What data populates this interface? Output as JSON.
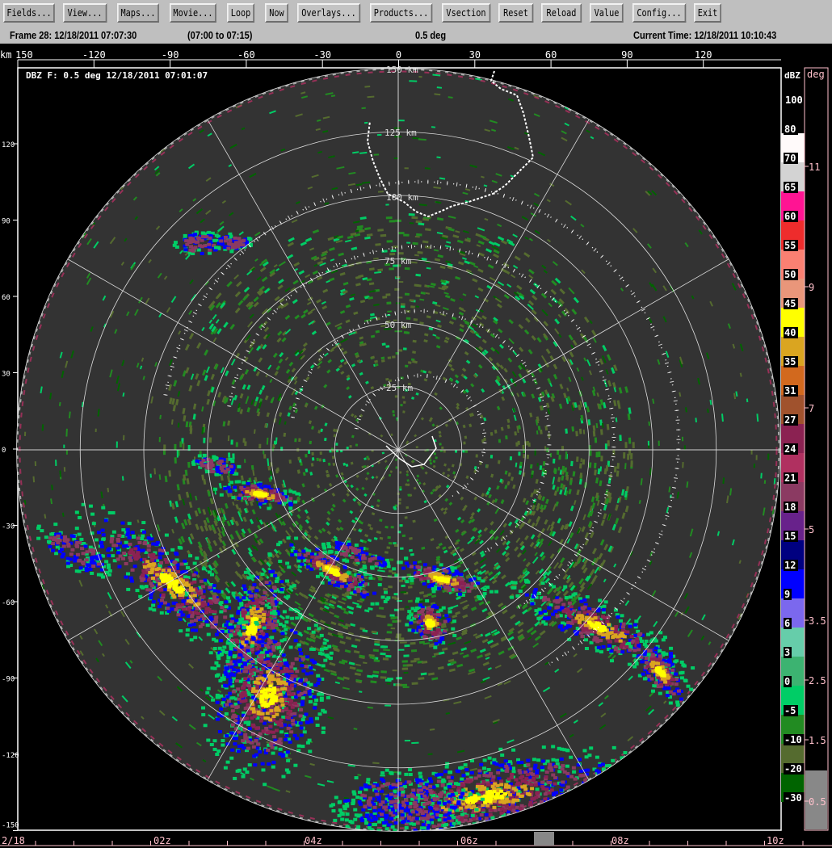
{
  "toolbar": {
    "buttons": [
      "Fields...",
      "View...",
      "Maps...",
      "Movie...",
      "Loop",
      "Now",
      "Overlays...",
      "Products...",
      "Vsection",
      "Reset",
      "Reload",
      "Value",
      "Config...",
      "Exit"
    ]
  },
  "status": {
    "frame": "Frame 28: 12/18/2011 07:07:30",
    "range": "(07:00 to 07:15)",
    "elevation": "0.5 deg",
    "current_time": "Current Time: 12/18/2011 10:10:43"
  },
  "plot": {
    "title": "DBZ F: 0.5 deg 12/18/2011 07:01:07",
    "x_unit": "km",
    "x_ticks": [
      "150",
      "-120",
      "-90",
      "-60",
      "-30",
      "0",
      "30",
      "60",
      "90",
      "120"
    ],
    "y_ticks": [
      "120",
      "90",
      "60",
      "30",
      "0",
      "-30",
      "-60",
      "-90",
      "-120",
      "-150"
    ],
    "ring_labels": [
      "25 km",
      "50 km",
      "75 km",
      "100 km",
      "125 km",
      "150 km"
    ]
  },
  "colorbar": {
    "unit": "dBZ",
    "top_label": "100",
    "labels": [
      "80",
      "70",
      "65",
      "60",
      "55",
      "50",
      "45",
      "40",
      "35",
      "31",
      "27",
      "24",
      "21",
      "18",
      "15",
      "12",
      "9",
      "6",
      "3",
      "0",
      "-5",
      "-10",
      "-20",
      "-30"
    ],
    "colors": [
      "#fffafa",
      "#d3d3d3",
      "#ff1493",
      "#ee2c2c",
      "#fa8072",
      "#e9967a",
      "#ffff00",
      "#daa520",
      "#d2691e",
      "#a0522d",
      "#8b2252",
      "#b03060",
      "#8b3a62",
      "#68228b",
      "#000080",
      "#0000ff",
      "#7b68ee",
      "#66cdaa",
      "#3cb371",
      "#00cd66",
      "#228b22",
      "#556b2f",
      "#006400"
    ]
  },
  "elevation_bar": {
    "unit": "deg",
    "labels": [
      "11",
      "9",
      "7",
      "5",
      "3.5",
      "2.5",
      "1.5",
      "0.5"
    ],
    "selected": "0.5"
  },
  "time_axis": {
    "labels": [
      "2/18",
      "02z",
      "04z",
      "06z",
      "08z",
      "10z"
    ]
  }
}
